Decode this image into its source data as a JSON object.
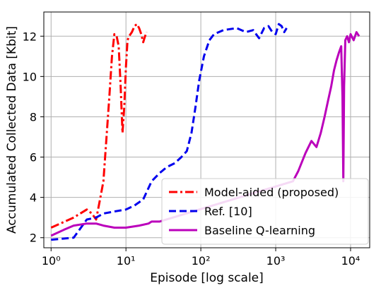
{
  "chart_data": {
    "type": "line",
    "xlabel": "Episode [log scale]",
    "ylabel": "Accumulated Collected Data [Kbit]",
    "xscale": "log",
    "xlim": [
      0.8,
      18000
    ],
    "ylim": [
      1.5,
      13.2
    ],
    "xticks": [
      {
        "value": 1,
        "label": "10⁰"
      },
      {
        "value": 10,
        "label": "10¹"
      },
      {
        "value": 100,
        "label": "10²"
      },
      {
        "value": 1000,
        "label": "10³"
      },
      {
        "value": 10000,
        "label": "10⁴"
      }
    ],
    "yticks": [
      2,
      4,
      6,
      8,
      10,
      12
    ],
    "grid": true,
    "legend_position": "lower-right",
    "series": [
      {
        "name": "Model-aided (proposed)",
        "color": "#ff0000",
        "style": "dashdot",
        "x": [
          1,
          2,
          3,
          3.5,
          4,
          4.5,
          5,
          5.5,
          6,
          6.5,
          7,
          7.5,
          8,
          8.5,
          9,
          9.5,
          10,
          10.5,
          11,
          12,
          13,
          14,
          15,
          16,
          17,
          18,
          19
        ],
        "y": [
          2.5,
          3.0,
          3.4,
          3.2,
          2.9,
          3.9,
          4.8,
          7.0,
          9.0,
          11.0,
          12.1,
          12.0,
          11.5,
          9.5,
          7.2,
          8.5,
          10.5,
          11.8,
          12.0,
          12.2,
          12.5,
          12.6,
          12.4,
          12.1,
          11.7,
          12.0,
          12.2
        ]
      },
      {
        "name": "Ref. [10]",
        "color": "#0000ee",
        "style": "dashed",
        "x": [
          1,
          2,
          3,
          4,
          5,
          7,
          10,
          13,
          17,
          22,
          28,
          35,
          45,
          55,
          65,
          75,
          85,
          95,
          110,
          130,
          150,
          200,
          300,
          400,
          500,
          600,
          700,
          800,
          900,
          1000,
          1100,
          1200,
          1300,
          1400
        ],
        "y": [
          1.9,
          2.0,
          2.9,
          3.0,
          3.2,
          3.3,
          3.4,
          3.6,
          3.9,
          4.8,
          5.2,
          5.5,
          5.7,
          6.0,
          6.3,
          7.2,
          8.5,
          9.8,
          11.0,
          11.8,
          12.1,
          12.3,
          12.4,
          12.2,
          12.3,
          11.9,
          12.4,
          12.5,
          12.2,
          12.1,
          12.6,
          12.5,
          12.2,
          12.4
        ]
      },
      {
        "name": "Baseline Q-learning",
        "color": "#bb00bb",
        "style": "solid",
        "x": [
          1,
          1.5,
          2,
          3,
          4,
          5,
          7,
          10,
          15,
          20,
          22,
          28,
          1700,
          2000,
          2500,
          3000,
          3500,
          4000,
          4500,
          5000,
          5500,
          6000,
          6500,
          7000,
          7500,
          7800,
          8000,
          8200,
          8500,
          9000,
          9500,
          10000,
          11000,
          12000,
          13000
        ],
        "y": [
          2.1,
          2.4,
          2.6,
          2.7,
          2.7,
          2.6,
          2.5,
          2.5,
          2.6,
          2.7,
          2.8,
          2.8,
          4.8,
          5.3,
          6.2,
          6.8,
          6.5,
          7.2,
          8.0,
          8.8,
          9.5,
          10.3,
          10.8,
          11.2,
          11.5,
          9.0,
          4.8,
          9.5,
          11.8,
          12.0,
          11.7,
          12.1,
          11.8,
          12.2,
          12.0
        ]
      }
    ]
  }
}
